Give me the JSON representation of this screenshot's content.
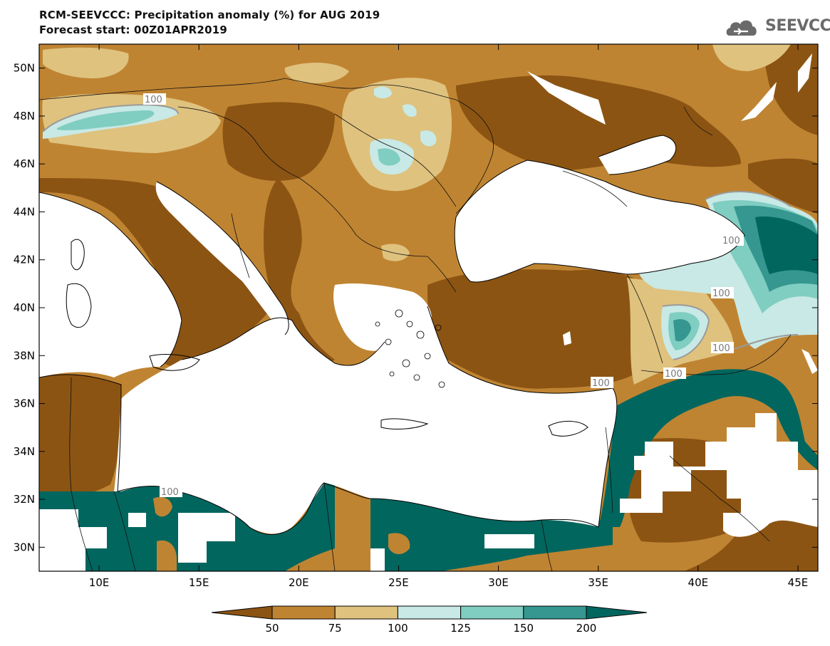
{
  "header": {
    "title_line1": "RCM-SEEVCCC: Precipitation anomaly (%) for AUG 2019",
    "title_line2": "Forecast start: 00Z01APR2019",
    "logo_text": "SEEVCCC"
  },
  "map": {
    "projection": "lat-lon",
    "lon_range": [
      7,
      46
    ],
    "lat_range": [
      29,
      51
    ],
    "lon_ticks": [
      "10E",
      "15E",
      "20E",
      "25E",
      "30E",
      "35E",
      "40E",
      "45E"
    ],
    "lat_ticks": [
      "50N",
      "48N",
      "46N",
      "44N",
      "42N",
      "40N",
      "38N",
      "36N",
      "34N",
      "32N",
      "30N"
    ],
    "contour_labels": [
      "100",
      "100",
      "100",
      "100",
      "100",
      "100",
      "100"
    ]
  },
  "legend": {
    "levels": [
      "50",
      "75",
      "100",
      "125",
      "150",
      "200"
    ],
    "colors": [
      "#8C5413",
      "#BF8432",
      "#DFC27E",
      "#C8E9E5",
      "#80CDC1",
      "#35978F",
      "#01665E"
    ]
  }
}
